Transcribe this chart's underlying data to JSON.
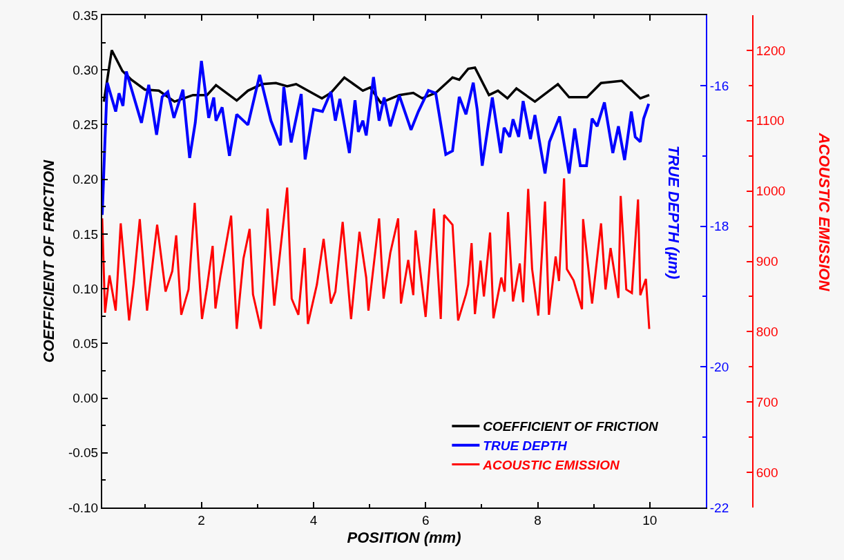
{
  "chart_data": {
    "type": "line",
    "xlabel": "POSITION (mm)",
    "ylabel": "COEFFICIENT OF FRICTION",
    "y2label": "TRUE DEPTH (µm)",
    "y3label": "ACOUSTIC EMISSION",
    "xlim": [
      0.23,
      11
    ],
    "xticks": [
      {
        "value": 1,
        "label": null
      },
      2,
      {
        "value": 3,
        "label": null
      },
      4,
      {
        "value": 5,
        "label": null
      },
      6,
      {
        "value": 7,
        "label": null
      },
      8,
      {
        "value": 9,
        "label": null
      },
      10
    ],
    "ylim": [
      -0.1,
      0.35
    ],
    "yticks": [
      {
        "value": -0.1,
        "label": "-0.10"
      },
      {
        "value": -0.075,
        "label": null
      },
      {
        "value": -0.05,
        "label": "-0.05"
      },
      {
        "value": -0.025,
        "label": null
      },
      {
        "value": 0,
        "label": "0.00"
      },
      {
        "value": 0.025,
        "label": null
      },
      {
        "value": 0.05,
        "label": "0.05"
      },
      {
        "value": 0.075,
        "label": null
      },
      {
        "value": 0.1,
        "label": "0.10"
      },
      {
        "value": 0.125,
        "label": null
      },
      {
        "value": 0.15,
        "label": "0.15"
      },
      {
        "value": 0.175,
        "label": null
      },
      {
        "value": 0.2,
        "label": "0.20"
      },
      {
        "value": 0.225,
        "label": null
      },
      {
        "value": 0.25,
        "label": "0.25"
      },
      {
        "value": 0.275,
        "label": null
      },
      {
        "value": 0.3,
        "label": "0.30"
      },
      {
        "value": 0.325,
        "label": null
      },
      {
        "value": 0.35,
        "label": "0.35"
      }
    ],
    "y2lim": [
      -22,
      -15
    ],
    "y2ticks": [
      -22,
      {
        "value": -21,
        "label": null
      },
      -20,
      {
        "value": -19,
        "label": null
      },
      -18,
      {
        "value": -17,
        "label": null
      },
      -16
    ],
    "y3lim": [
      550,
      1250
    ],
    "y3ticks": [
      600,
      {
        "value": 650,
        "label": null
      },
      700,
      {
        "value": 750,
        "label": null
      },
      800,
      {
        "value": 850,
        "label": null
      },
      900,
      {
        "value": 950,
        "label": null
      },
      1000,
      {
        "value": 1050,
        "label": null
      },
      1100,
      {
        "value": 1150,
        "label": null
      },
      1200
    ],
    "grid": false,
    "legend": "bottom right",
    "series": [
      {
        "name": "COEFFICIENT OF FRICTION",
        "color": "#000000",
        "x": [
          0.26,
          0.4,
          0.59,
          0.75,
          0.99,
          1.24,
          1.52,
          1.85,
          2.1,
          2.26,
          2.63,
          2.83,
          3.08,
          3.33,
          3.53,
          3.69,
          4.15,
          4.31,
          4.55,
          4.88,
          5.01,
          5.2,
          5.53,
          5.78,
          5.94,
          6.18,
          6.48,
          6.6,
          6.76,
          6.88,
          7.13,
          7.29,
          7.46,
          7.62,
          7.95,
          8.36,
          8.56,
          8.88,
          9.13,
          9.5,
          9.83,
          9.99
        ],
        "values": [
          0.271,
          0.318,
          0.299,
          0.291,
          0.282,
          0.281,
          0.271,
          0.277,
          0.277,
          0.286,
          0.272,
          0.281,
          0.287,
          0.288,
          0.285,
          0.287,
          0.274,
          0.279,
          0.293,
          0.281,
          0.284,
          0.27,
          0.277,
          0.279,
          0.274,
          0.279,
          0.293,
          0.291,
          0.301,
          0.302,
          0.277,
          0.281,
          0.274,
          0.283,
          0.271,
          0.287,
          0.275,
          0.275,
          0.288,
          0.29,
          0.274,
          0.277
        ]
      },
      {
        "name": "TRUE DEPTH",
        "color": "#0000ff",
        "axis": "y2",
        "x": [
          0.23,
          0.28,
          0.32,
          0.47,
          0.53,
          0.6,
          0.66,
          0.93,
          1.06,
          1.2,
          1.3,
          1.4,
          1.51,
          1.67,
          1.79,
          1.89,
          2.0,
          2.13,
          2.22,
          2.26,
          2.37,
          2.5,
          2.63,
          2.83,
          3.04,
          3.24,
          3.41,
          3.47,
          3.6,
          3.78,
          3.85,
          4.0,
          4.16,
          4.31,
          4.39,
          4.47,
          4.64,
          4.74,
          4.8,
          4.88,
          4.94,
          5.07,
          5.17,
          5.26,
          5.37,
          5.53,
          5.74,
          5.87,
          6.05,
          6.18,
          6.36,
          6.48,
          6.6,
          6.72,
          6.85,
          6.92,
          7.01,
          7.19,
          7.34,
          7.4,
          7.5,
          7.56,
          7.66,
          7.74,
          7.87,
          7.95,
          8.13,
          8.21,
          8.39,
          8.56,
          8.66,
          8.76,
          8.87,
          8.97,
          9.06,
          9.19,
          9.34,
          9.44,
          9.55,
          9.67,
          9.74,
          9.83,
          9.89,
          9.98
        ],
        "values": [
          -17.84,
          -16.76,
          -15.96,
          -16.37,
          -16.11,
          -16.29,
          -15.8,
          -16.53,
          -15.99,
          -16.7,
          -16.16,
          -16.09,
          -16.46,
          -16.06,
          -17.03,
          -16.53,
          -15.65,
          -16.46,
          -16.17,
          -16.5,
          -16.31,
          -17.0,
          -16.41,
          -16.56,
          -15.85,
          -16.5,
          -16.85,
          -16.02,
          -16.81,
          -16.12,
          -17.05,
          -16.34,
          -16.37,
          -16.09,
          -16.5,
          -16.19,
          -16.96,
          -16.21,
          -16.66,
          -16.5,
          -16.71,
          -15.88,
          -16.5,
          -16.17,
          -16.58,
          -16.14,
          -16.63,
          -16.37,
          -16.07,
          -16.11,
          -16.98,
          -16.93,
          -16.16,
          -16.41,
          -15.96,
          -16.34,
          -17.14,
          -16.17,
          -16.96,
          -16.6,
          -16.73,
          -16.48,
          -16.73,
          -16.22,
          -16.76,
          -16.42,
          -17.25,
          -16.8,
          -16.44,
          -17.25,
          -16.61,
          -17.14,
          -17.14,
          -16.47,
          -16.58,
          -16.24,
          -16.96,
          -16.58,
          -17.06,
          -16.37,
          -16.73,
          -16.8,
          -16.47,
          -16.26
        ]
      },
      {
        "name": "ACOUSTIC EMISSION",
        "color": "#ff0000",
        "axis": "y3",
        "x": [
          0.23,
          0.28,
          0.36,
          0.47,
          0.56,
          0.71,
          0.79,
          0.9,
          1.03,
          1.21,
          1.36,
          1.48,
          1.55,
          1.64,
          1.77,
          1.88,
          2.01,
          2.1,
          2.2,
          2.25,
          2.34,
          2.53,
          2.63,
          2.75,
          2.86,
          2.92,
          3.06,
          3.18,
          3.3,
          3.53,
          3.61,
          3.73,
          3.84,
          3.9,
          4.06,
          4.18,
          4.31,
          4.39,
          4.52,
          4.67,
          4.82,
          4.94,
          4.98,
          5.17,
          5.25,
          5.37,
          5.51,
          5.56,
          5.69,
          5.78,
          5.82,
          6.0,
          6.15,
          6.27,
          6.33,
          6.48,
          6.58,
          6.72,
          6.76,
          6.82,
          6.88,
          6.98,
          7.04,
          7.15,
          7.21,
          7.35,
          7.41,
          7.47,
          7.56,
          7.68,
          7.74,
          7.83,
          7.9,
          8.01,
          8.13,
          8.2,
          8.32,
          8.38,
          8.47,
          8.52,
          8.64,
          8.79,
          8.81,
          8.97,
          9.13,
          9.21,
          9.3,
          9.44,
          9.48,
          9.58,
          9.68,
          9.79,
          9.83,
          9.93,
          9.99
        ],
        "values": [
          961,
          827,
          880,
          830,
          954,
          816,
          868,
          960,
          830,
          952,
          857,
          886,
          937,
          824,
          860,
          983,
          818,
          863,
          922,
          833,
          880,
          965,
          804,
          904,
          946,
          853,
          804,
          975,
          837,
          1005,
          847,
          824,
          919,
          811,
          867,
          932,
          840,
          857,
          956,
          818,
          942,
          877,
          830,
          961,
          847,
          912,
          961,
          840,
          902,
          852,
          944,
          821,
          975,
          818,
          966,
          952,
          816,
          853,
          867,
          926,
          825,
          901,
          850,
          941,
          819,
          877,
          857,
          970,
          843,
          897,
          842,
          1003,
          889,
          823,
          985,
          824,
          907,
          872,
          1018,
          889,
          873,
          832,
          960,
          840,
          954,
          860,
          919,
          848,
          993,
          860,
          855,
          988,
          852,
          875,
          804
        ]
      }
    ]
  }
}
